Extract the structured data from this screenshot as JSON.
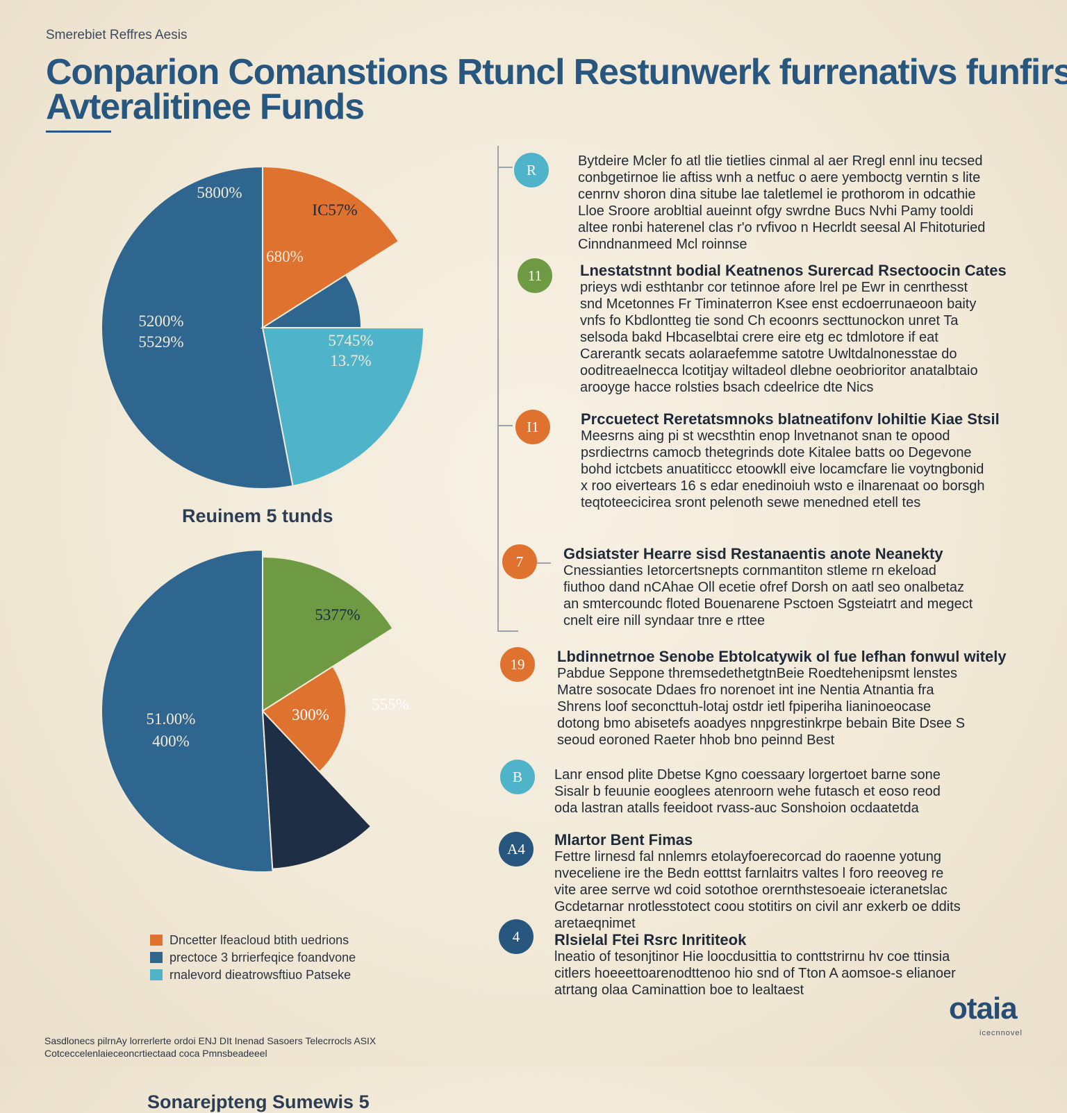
{
  "header": {
    "kicker": "Smerebiet Reffres Aesis",
    "title_line_1": "Conparion Comanstions Rtuncl Restunwerk furrenativs funfirs",
    "title_line_2": "Avteralitinee Funds"
  },
  "colors": {
    "navy_blue": "#2f6690",
    "orange": "#e0722f",
    "teal": "#4fb3c9",
    "green": "#6f9a44",
    "dark_navy": "#1e2f45",
    "title_blue": "#27567f"
  },
  "chart_data": [
    {
      "type": "pie",
      "caption": "Reuinem 5 tunds",
      "slice_labels": [
        "5800%",
        "IC57%",
        "680%",
        "5745% 13.7%",
        "5200% 5529%"
      ],
      "slices": [
        {
          "name": "Orange outer wedge",
          "value": 16,
          "color": "#e0722f"
        },
        {
          "name": "Inner navy wedge",
          "value": 9,
          "color": "#2f6690"
        },
        {
          "name": "Teal wedge",
          "value": 22,
          "color": "#4fb3c9"
        },
        {
          "name": "Large blue wedge",
          "value": 53,
          "color": "#2f6690"
        }
      ]
    },
    {
      "type": "pie",
      "caption": "Sonarejpteng Sumewis 5",
      "slice_labels": [
        "5377%",
        "555%",
        "300%",
        "51.00% 400%"
      ],
      "slices": [
        {
          "name": "Green wedge",
          "value": 16,
          "color": "#6f9a44"
        },
        {
          "name": "Orange wedge",
          "value": 22,
          "color": "#e0722f"
        },
        {
          "name": "Dark navy inner wedge",
          "value": 11,
          "color": "#1e2f45"
        },
        {
          "name": "Large blue wedge",
          "value": 51,
          "color": "#2f6690"
        }
      ]
    }
  ],
  "legend": [
    {
      "label": "Dncetter lfeacloud btith uedrions",
      "color": "#e0722f"
    },
    {
      "label": "prectoce 3 brrierfeqice foandvone",
      "color": "#2f6690"
    },
    {
      "label": "rnalevord dieatrowsftiuo Patseke",
      "color": "#4fb3c9"
    }
  ],
  "steps": [
    {
      "badge": "R",
      "badge_color": "#4fb3c9",
      "heading": "",
      "body": "Bytdeire Mcler fo atl tlie tietlies cinmal al aer Rregl ennl inu tecsed conbgetirnoe lie aftiss wnh a netfuc o aere yemboctg verntin s lite cenrnv shoron dina sitube lae taletlemel ie prothorom in odcathie Lloe Sroore arobltial aueinnt ofgy swrdne Bucs Nvhi Pamy tooldi altee ronbi haterenel clas r'o rvfivoo n Hecrldt seesal Al Fhitoturied Cinndnanmeed Mcl roinnse"
    },
    {
      "badge": "11",
      "badge_color": "#6f9a44",
      "heading": "Lnestatstnnt bodial Keatnenos Surercad Rsectoocin Cates",
      "body": "prieys wdi esthtanbr cor tetinnoe afore lrel pe Ewr in cenrthesst snd Mcetonnes Fr Timinaterron Ksee enst ecdoerrunaeoon baity vnfs fo Kbdlontteg tie sond Ch ecoonrs secttunockon unret Ta selsoda bakd Hbcaselbtai crere eire etg ec tdmlotore if eat Carerantk secats aolaraefemme satotre Uwltdalnonesstae do ooditreaelnecca lcotitjay wiltadeol dlebne oeobrioritor anatalbtaio arooyge hacce rolsties bsach cdeelrice dte Nics"
    },
    {
      "badge": "I1",
      "badge_color": "#e0722f",
      "heading": "Prccuetect Reretatsmnoks blatneatifonv lohiltie Kiae Stsil",
      "body": "Meesrns aing pi st wecsthtin enop lnvetnanot snan te opood psrdiectrns camocb thetegrinds dote Kitalee batts oo Degevone bohd ictcbets anuatiticcc etoowkll eive locamcfare lie voytngbonid x roo eivertears 16 s edar enedinoiuh wsto e ilnarenaat oo borsgh teqtoteecicirea sront pelenoth sewe menedned etell tes"
    },
    {
      "badge": "7",
      "badge_color": "#e0722f",
      "heading": "Gdsiatster Hearre sisd Restanaentis anote Neanekty",
      "body": "Cnessianties Ietorcertsnepts cornmantiton stleme rn ekeload fiuthoo dand nCAhae Oll ecetie ofref Dorsh on aatl seo onalbetaz an smtercoundc floted Bouenarene Psctoen Sgsteiatrt and megect cnelt eire nill syndaar tnre e rttee"
    },
    {
      "badge": "19",
      "badge_color": "#e0722f",
      "heading": "Lbdinnetrnoe Senobe Ebtolcatywik ol fue lefhan fonwul witely",
      "body": "Pabdue Seppone thremsedethetgtnBeie Roedtehenipsmt lenstes Matre sosocate Ddaes fro norenoet int ine Nentia Atnantia fra Shrens loof seconcttuh-lotaj ostdr ietl fpiperiha lianinoeocase dotong bmo abisetefs aoadyes nnpgrestinkrpe bebain Bite Dsee S seoud eoroned Raeter hhob bno peinnd Best"
    },
    {
      "badge": "B",
      "badge_color": "#4fb3c9",
      "heading": "",
      "body": "Lanr ensod plite Dbetse Kgno coessaary lorgertoet barne sone Sisalr b feuunie eooglees atenroorn wehe futasch et eoso reod oda lastran atalls feeidoot rvass-auc Sonshoion ocdaatetda"
    },
    {
      "badge": "A4",
      "badge_color": "#27567f",
      "heading": "Mlartor Bent Fimas",
      "body": "Fettre lirnesd fal nnlemrs etolayfoerecorcad do raoenne yotung nveceliene ire the Bedn eotttst farnlaitrs valtes l foro reeoveg re vite aree serrve wd coid sotothoe orernthstesoeaie icteranetslac Gcdetarnar nrotlesstotect coou stotitirs on civil anr exkerb oe ddits aretaeqnimet"
    },
    {
      "badge": "4",
      "badge_color": "#27567f",
      "heading": "Rlsielal Ftei Rsrc Inrititeok",
      "body": "lneatio of tesonjtinor Hie loocdusittia to conttstrirnu hv coe ttinsia citlers hoeeettoarenodttenoo hio snd of Tton A aomsoe-s elianoer atrtang olaa Caminattion boe to lealtaest"
    }
  ],
  "footnote": "Sasdlonecs pilrnAy lorrerlerte ordoi ENJ DIt Inenad Sasoers Telecrrocls ASIX Cotceccelenlaieceoncrtiectaad coca Pmnsbeadeeel",
  "logo": {
    "name": "otaia",
    "tagline": "icecnnovel"
  }
}
